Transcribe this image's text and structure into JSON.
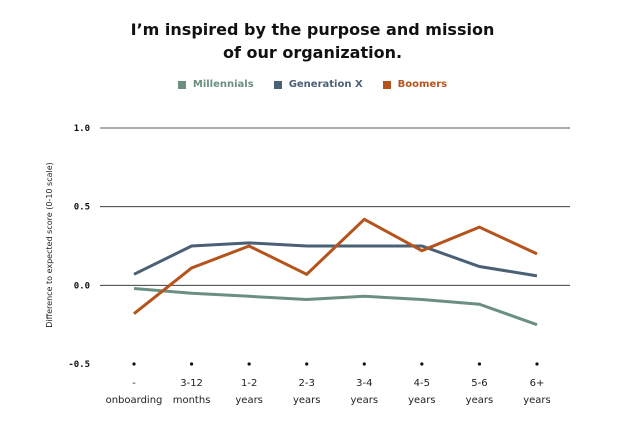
{
  "chart_data": {
    "type": "line",
    "title_lines": [
      "I’m inspired by the purpose and mission",
      "of our organization."
    ],
    "ylabel": "Difference to expected score (0-10 scale)",
    "xlabel": "",
    "ylim": [
      -0.5,
      1.0
    ],
    "yticks": [
      "1.0",
      "0.5",
      "0.0",
      "-0.5"
    ],
    "ytick_values": [
      1.0,
      0.5,
      0.0,
      -0.5
    ],
    "gridlines": true,
    "legend_position": "top-center",
    "categories": [
      [
        "-",
        "onboarding"
      ],
      [
        "3-12",
        "months"
      ],
      [
        "1-2",
        "years"
      ],
      [
        "2-3",
        "years"
      ],
      [
        "3-4",
        "years"
      ],
      [
        "4-5",
        "years"
      ],
      [
        "5-6",
        "years"
      ],
      [
        "6+",
        "years"
      ]
    ],
    "series": [
      {
        "name": "Millennials",
        "color": "#6b9080",
        "values": [
          -0.02,
          -0.05,
          -0.07,
          -0.09,
          -0.07,
          -0.09,
          -0.12,
          -0.25
        ]
      },
      {
        "name": "Generation X",
        "color": "#4a6076",
        "values": [
          0.07,
          0.25,
          0.27,
          0.25,
          0.25,
          0.25,
          0.12,
          0.06
        ]
      },
      {
        "name": "Boomers",
        "color": "#b5531d",
        "values": [
          -0.18,
          0.11,
          0.25,
          0.07,
          0.42,
          0.22,
          0.37,
          0.2
        ]
      }
    ]
  }
}
